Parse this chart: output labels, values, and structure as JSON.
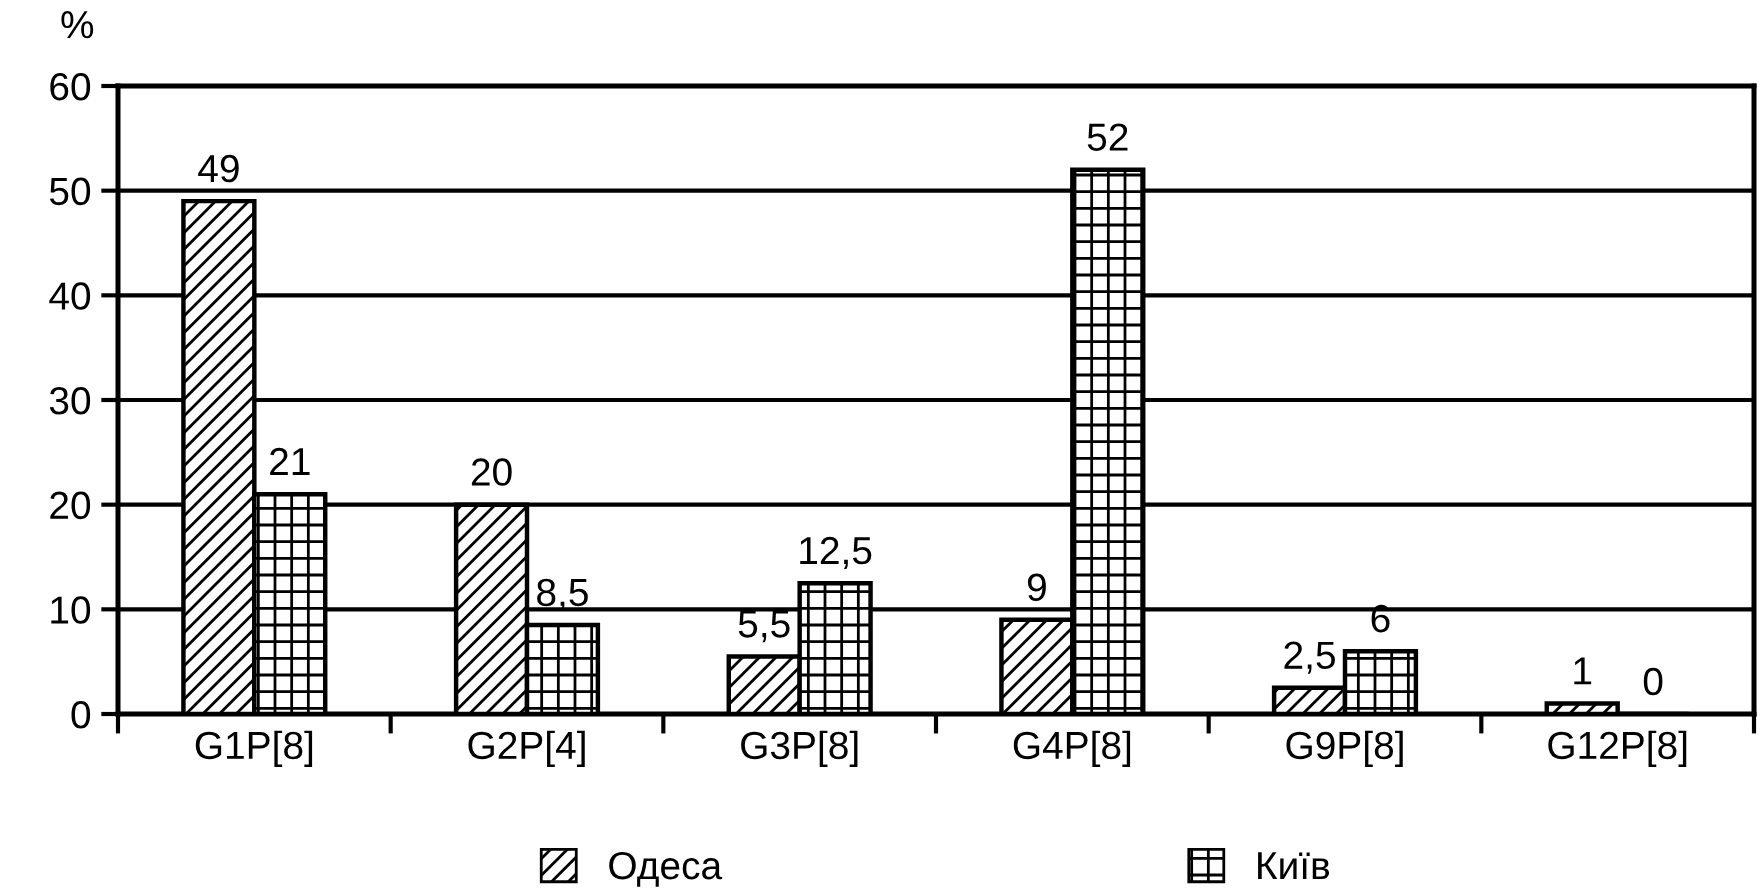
{
  "chart_data": {
    "type": "bar",
    "ylabel": "%",
    "categories": [
      "G1P[8]",
      "G2P[4]",
      "G3P[8]",
      "G4P[8]",
      "G9P[8]",
      "G12P[8]"
    ],
    "series": [
      {
        "name": "Одеса",
        "color": "#000000",
        "values": [
          49,
          20,
          5.5,
          9,
          2.5,
          1
        ],
        "value_labels": [
          "49",
          "20",
          "5,5",
          "9",
          "2,5",
          "1"
        ]
      },
      {
        "name": "Київ",
        "color": "#000000",
        "values": [
          21,
          8.5,
          12.5,
          52,
          6,
          0
        ],
        "value_labels": [
          "21",
          "8,5",
          "12,5",
          "52",
          "6",
          "0"
        ]
      }
    ],
    "ylim": [
      0,
      60
    ],
    "yticks": [
      0,
      10,
      20,
      30,
      40,
      50,
      60
    ],
    "grid": "y",
    "legend": "bottom"
  }
}
